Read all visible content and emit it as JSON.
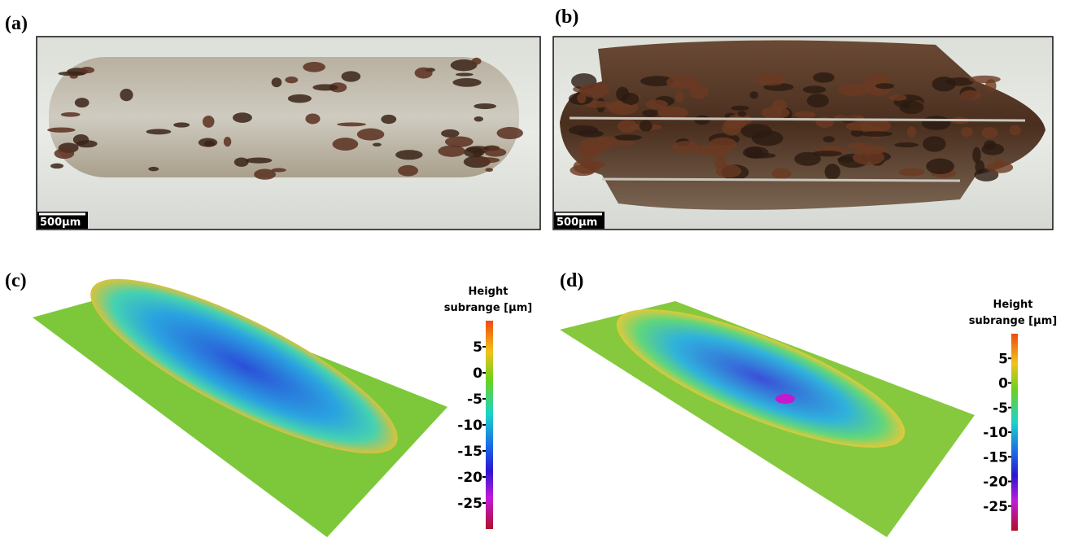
{
  "panels": [
    {
      "label": "(a)",
      "scale_bar": "500µm"
    },
    {
      "label": "(b)",
      "scale_bar": "500µm"
    },
    {
      "label": "(c)",
      "colorbar": {
        "title": [
          "Height",
          "subrange [µm]"
        ],
        "lim": [
          -30,
          10
        ],
        "ticks": [
          5,
          0,
          -5,
          -10,
          -15,
          -20,
          -25
        ]
      }
    },
    {
      "label": "(d)",
      "colorbar": {
        "title": [
          "Height",
          "subrange [µm]"
        ],
        "lim": [
          -30,
          10
        ],
        "ticks": [
          5,
          0,
          -5,
          -10,
          -15,
          -20,
          -25
        ]
      }
    }
  ]
}
